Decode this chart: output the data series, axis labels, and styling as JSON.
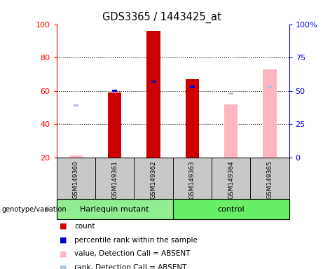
{
  "title": "GDS3365 / 1443425_at",
  "samples": [
    "GSM149360",
    "GSM149361",
    "GSM149362",
    "GSM149363",
    "GSM149364",
    "GSM149365"
  ],
  "group_spans": [
    {
      "label": "Harlequin mutant",
      "start": 0,
      "end": 3,
      "color": "#90EE90"
    },
    {
      "label": "control",
      "start": 3,
      "end": 6,
      "color": "#66EE66"
    }
  ],
  "ylim_left": [
    20,
    100
  ],
  "ylim_right": [
    0,
    100
  ],
  "yticks_left": [
    20,
    40,
    60,
    80,
    100
  ],
  "yticks_right": [
    0,
    25,
    50,
    75,
    100
  ],
  "ytick_labels_right": [
    "0",
    "25",
    "50",
    "75",
    "100%"
  ],
  "count_values": [
    null,
    59,
    96,
    67,
    null,
    null
  ],
  "rank_values": [
    null,
    50,
    57,
    53,
    null,
    null
  ],
  "absent_value_values": [
    21,
    null,
    null,
    null,
    52,
    73
  ],
  "absent_rank_values": [
    39,
    null,
    null,
    null,
    48,
    53
  ],
  "color_count": "#CC0000",
  "color_rank": "#0000CC",
  "color_absent_value": "#FFB6C1",
  "color_absent_rank": "#B0C4DE",
  "bg_sample_area": "#C8C8C8",
  "genotype_label": "genotype/variation",
  "legend_items": [
    [
      "#CC0000",
      "count"
    ],
    [
      "#0000CC",
      "percentile rank within the sample"
    ],
    [
      "#FFB6C1",
      "value, Detection Call = ABSENT"
    ],
    [
      "#B0C4DE",
      "rank, Detection Call = ABSENT"
    ]
  ]
}
